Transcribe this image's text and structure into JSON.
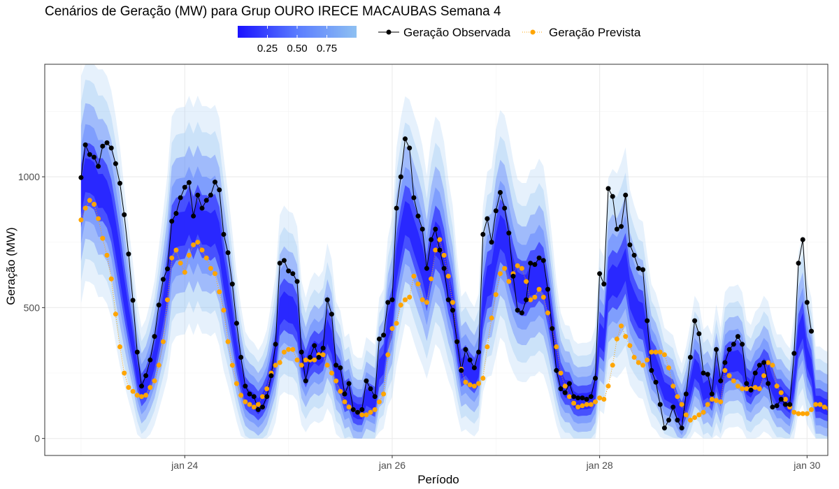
{
  "chart_data": {
    "type": "line",
    "title": "Cenários de Geração (MW) para Grup OURO IRECE MACAUBAS Semana 4",
    "xlabel": "Período",
    "ylabel": "Geração (MW)",
    "x_unit": "days (jan 23 00:00 = 23)",
    "xlim": [
      22.65,
      30.2
    ],
    "ylim": [
      -65,
      1430
    ],
    "x_ticks": [
      {
        "value": 24,
        "label": "jan 24"
      },
      {
        "value": 26,
        "label": "jan 26"
      },
      {
        "value": 28,
        "label": "jan 28"
      },
      {
        "value": 30,
        "label": "jan 30"
      }
    ],
    "y_ticks": [
      {
        "value": 0,
        "label": "0"
      },
      {
        "value": 500,
        "label": "500"
      },
      {
        "value": 1000,
        "label": "1000"
      }
    ],
    "x_start": 23.0,
    "x_step_hours": 1,
    "grid": true,
    "legend": {
      "position": "top",
      "gradient_title": "",
      "gradient_ticks": [
        "0.25",
        "0.50",
        "0.75"
      ],
      "gradient_colors": [
        "#1a12ff",
        "#5a7cff",
        "#8ec0f2"
      ]
    },
    "series": [
      {
        "name": "Geração Observada",
        "color": "#000000",
        "marker": "circle",
        "values": [
          997,
          1122,
          1085,
          1075,
          1040,
          1117,
          1130,
          1110,
          1050,
          975,
          855,
          705,
          528,
          330,
          200,
          240,
          300,
          390,
          510,
          608,
          648,
          830,
          860,
          920,
          960,
          978,
          850,
          930,
          880,
          910,
          930,
          980,
          950,
          780,
          710,
          590,
          440,
          310,
          200,
          170,
          160,
          110,
          120,
          160,
          240,
          360,
          670,
          680,
          640,
          630,
          600,
          330,
          220,
          310,
          355,
          310,
          345,
          530,
          475,
          280,
          270,
          170,
          210,
          110,
          100,
          110,
          220,
          190,
          160,
          380,
          395,
          520,
          530,
          880,
          1000,
          1145,
          1110,
          920,
          850,
          800,
          650,
          760,
          800,
          720,
          650,
          530,
          490,
          370,
          260,
          340,
          300,
          270,
          330,
          780,
          840,
          750,
          870,
          940,
          880,
          785,
          620,
          490,
          480,
          530,
          670,
          665,
          690,
          680,
          570,
          420,
          260,
          190,
          175,
          210,
          160,
          155,
          155,
          150,
          160,
          230,
          630,
          590,
          955,
          925,
          800,
          810,
          930,
          740,
          700,
          650,
          645,
          450,
          260,
          215,
          130,
          40,
          70,
          120,
          70,
          40,
          170,
          310,
          450,
          400,
          250,
          245,
          170,
          340,
          220,
          290,
          340,
          360,
          390,
          360,
          210,
          185,
          250,
          280,
          290,
          210,
          120,
          125,
          150,
          130,
          130,
          325,
          670,
          760,
          520,
          410
        ]
      },
      {
        "name": "Geração Prevista",
        "color": "#ffa500",
        "marker": "circle",
        "values": [
          835,
          880,
          910,
          895,
          840,
          765,
          700,
          610,
          475,
          350,
          250,
          195,
          180,
          165,
          160,
          165,
          195,
          220,
          280,
          370,
          530,
          690,
          720,
          670,
          635,
          700,
          740,
          750,
          720,
          690,
          650,
          630,
          560,
          490,
          370,
          280,
          210,
          165,
          140,
          130,
          120,
          130,
          160,
          190,
          250,
          280,
          290,
          330,
          340,
          340,
          300,
          280,
          300,
          300,
          300,
          320,
          320,
          280,
          250,
          220,
          180,
          140,
          120,
          110,
          100,
          90,
          90,
          100,
          110,
          140,
          170,
          320,
          420,
          440,
          510,
          530,
          540,
          620,
          590,
          530,
          520,
          610,
          720,
          760,
          700,
          620,
          520,
          370,
          265,
          215,
          205,
          200,
          210,
          230,
          350,
          460,
          550,
          630,
          650,
          600,
          630,
          660,
          650,
          600,
          530,
          540,
          570,
          540,
          480,
          420,
          350,
          250,
          200,
          160,
          135,
          120,
          125,
          130,
          130,
          140,
          155,
          150,
          200,
          280,
          380,
          430,
          390,
          355,
          310,
          290,
          280,
          300,
          330,
          330,
          330,
          320,
          270,
          200,
          160,
          130,
          90,
          70,
          80,
          90,
          100,
          130,
          150,
          145,
          140,
          260,
          240,
          220,
          200,
          190,
          190,
          190,
          195,
          190,
          240,
          290,
          280,
          200,
          175,
          150,
          120,
          100,
          95,
          95,
          95,
          110,
          130,
          130,
          120,
          115
        ]
      }
    ]
  }
}
